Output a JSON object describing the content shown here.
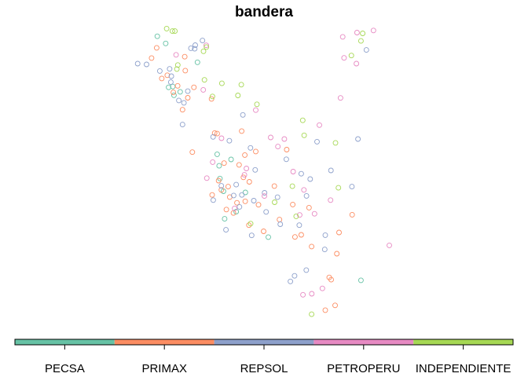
{
  "chart_data": {
    "type": "scatter",
    "title": "bandera",
    "categories": [
      "PECSA",
      "PRIMAX",
      "REPSOL",
      "PETROPERU",
      "INDEPENDIENTE"
    ],
    "colors": {
      "PECSA": "#66C2A5",
      "PRIMAX": "#FC8D62",
      "REPSOL": "#8DA0CB",
      "PETROPERU": "#E78AC3",
      "INDEPENDIENTE": "#A6D854"
    },
    "legend_position": "bottom",
    "grid": false,
    "axes": "none",
    "series": [
      {
        "category": "PECSA",
        "points": [
          [
            -79.83,
            -6.61
          ],
          [
            -80.41,
            -3.96
          ],
          [
            -77.03,
            -12.0
          ],
          [
            -76.64,
            -10.35
          ],
          [
            -76.97,
            -13.43
          ],
          [
            -77.25,
            -10.68
          ],
          [
            -75.91,
            -12.06
          ],
          [
            -79.56,
            -7.02
          ],
          [
            -79.24,
            -6.84
          ],
          [
            -76.38,
            -13.06
          ],
          [
            -78.36,
            -5.31
          ],
          [
            -79.98,
            -4.33
          ],
          [
            -77.35,
            -10.08
          ],
          [
            -77.21,
            -11.34
          ],
          [
            -79.62,
            -6.57
          ],
          [
            -74.74,
            -14.38
          ],
          [
            -70.01,
            -16.62
          ]
        ]
      },
      {
        "category": "PRIMAX",
        "points": [
          [
            -80.44,
            -4.56
          ],
          [
            -79.01,
            -5.02
          ],
          [
            -77.28,
            -11.45
          ],
          [
            -76.88,
            -12.95
          ],
          [
            -71.63,
            -16.47
          ],
          [
            -77.14,
            -11.93
          ],
          [
            -78.85,
            -7.15
          ],
          [
            -76.34,
            -12.6
          ],
          [
            -73.49,
            -12.69
          ],
          [
            -79.12,
            -7.77
          ],
          [
            -75.71,
            -11.51
          ],
          [
            -79.9,
            -5.98
          ],
          [
            -78.54,
            -6.61
          ],
          [
            -75.73,
            -13.76
          ],
          [
            -71.83,
            -18.17
          ],
          [
            -73.38,
            -14.37
          ],
          [
            -76.1,
            -8.88
          ],
          [
            -80.7,
            -5.09
          ],
          [
            -76.52,
            -13.13
          ],
          [
            -77.0,
            -10.54
          ],
          [
            -75.92,
            -12.52
          ],
          [
            -72.66,
            -12.85
          ],
          [
            -77.48,
            -8.98
          ],
          [
            -74.43,
            -11.73
          ],
          [
            -77.61,
            -12.19
          ],
          [
            -79.37,
            -6.53
          ],
          [
            -78.62,
            -9.97
          ],
          [
            -73.8,
            -9.84
          ],
          [
            -76.71,
            -12.3
          ],
          [
            -80.18,
            -6.15
          ],
          [
            -71.24,
            -15.24
          ],
          [
            -70.46,
            -13.22
          ],
          [
            -75.38,
            -9.94
          ],
          [
            -73.06,
            -14.26
          ],
          [
            -76.01,
            -11.28
          ],
          [
            -74.17,
            -13.47
          ],
          [
            -78.98,
            -5.74
          ],
          [
            -75.94,
            -10.12
          ],
          [
            -76.79,
            -11.76
          ],
          [
            -77.64,
            -7.21
          ],
          [
            -76.23,
            -10.63
          ],
          [
            -75.24,
            -12.7
          ],
          [
            -71.13,
            -14.14
          ],
          [
            -77.35,
            -9.01
          ],
          [
            -71.53,
            -16.59
          ],
          [
            -79.59,
            -6.87
          ],
          [
            -74.98,
            -14.08
          ],
          [
            -72.53,
            -14.87
          ],
          [
            -71.33,
            -17.92
          ]
        ]
      },
      {
        "category": "REPSOL",
        "points": [
          [
            -79.05,
            -7.41
          ],
          [
            -80.96,
            -5.42
          ],
          [
            -77.56,
            -9.18
          ],
          [
            -72.8,
            -16.09
          ],
          [
            -76.73,
            -9.38
          ],
          [
            -76.21,
            -12.81
          ],
          [
            -78.47,
            -4.42
          ],
          [
            -75.48,
            -12.49
          ],
          [
            -81.41,
            -5.38
          ],
          [
            -74.93,
            -12.08
          ],
          [
            -78.1,
            -4.18
          ],
          [
            -79.72,
            -6.34
          ],
          [
            -70.16,
            -9.29
          ],
          [
            -76.51,
            -12.22
          ],
          [
            -73.82,
            -10.34
          ],
          [
            -77.14,
            -11.72
          ],
          [
            -75.65,
            -9.75
          ],
          [
            -71.83,
            -14.28
          ],
          [
            -76.9,
            -14.0
          ],
          [
            -79.78,
            -5.65
          ],
          [
            -73.4,
            -16.39
          ],
          [
            -76.09,
            -12.19
          ],
          [
            -72.79,
            -12.24
          ],
          [
            -74.27,
            -12.31
          ],
          [
            -79.31,
            -7.29
          ],
          [
            -73.16,
            -13.76
          ],
          [
            -78.5,
            -4.61
          ],
          [
            -77.55,
            -12.46
          ],
          [
            -79.12,
            -8.54
          ],
          [
            -71.86,
            -15.02
          ],
          [
            -79.69,
            -6.03
          ],
          [
            -73.06,
            -11.09
          ],
          [
            -75.41,
            -10.89
          ],
          [
            -76.38,
            -11.66
          ],
          [
            -72.6,
            -11.37
          ],
          [
            -69.73,
            -4.67
          ],
          [
            -73.61,
            -16.68
          ],
          [
            -74.85,
            -13.07
          ],
          [
            -78.85,
            -6.81
          ],
          [
            -80.28,
            -5.76
          ],
          [
            -75.59,
            -14.29
          ],
          [
            -74.13,
            -13.71
          ],
          [
            -70.47,
            -11.76
          ],
          [
            -78.69,
            -4.58
          ],
          [
            -71.54,
            -10.92
          ],
          [
            -72.25,
            -9.43
          ],
          [
            -76.04,
            -8.04
          ]
        ]
      },
      {
        "category": "PETROPERU",
        "points": [
          [
            -77.58,
            -10.49
          ],
          [
            -70.21,
            -3.77
          ],
          [
            -72.52,
            -17.32
          ],
          [
            -75.96,
            -11.15
          ],
          [
            -74.25,
            -9.68
          ],
          [
            -70.24,
            -5.38
          ],
          [
            -71.56,
            -12.46
          ],
          [
            -75.38,
            -7.79
          ],
          [
            -77.88,
            -11.32
          ],
          [
            -77.13,
            -9.25
          ],
          [
            -71.98,
            -17.04
          ],
          [
            -70.94,
            -3.99
          ],
          [
            -78.06,
            -6.74
          ],
          [
            -74.94,
            -12.25
          ],
          [
            -73.47,
            -10.98
          ],
          [
            -72.92,
            -11.93
          ],
          [
            -75.86,
            -10.82
          ],
          [
            -71.05,
            -7.16
          ],
          [
            -79.45,
            -4.92
          ],
          [
            -74.62,
            -9.21
          ],
          [
            -72.38,
            -13.17
          ],
          [
            -77.91,
            -4.43
          ],
          [
            -69.37,
            -3.66
          ],
          [
            -76.46,
            -12.89
          ],
          [
            -73.92,
            -9.29
          ],
          [
            -72.97,
            -17.37
          ],
          [
            -72.13,
            -8.57
          ],
          [
            -68.56,
            -14.81
          ],
          [
            -70.87,
            -5.08
          ],
          [
            -73.14,
            -13.23
          ]
        ]
      },
      {
        "category": "INDEPENDIENTE",
        "points": [
          [
            -79.36,
            -5.45
          ],
          [
            -70.01,
            -4.2
          ],
          [
            -75.64,
            -13.68
          ],
          [
            -79.51,
            -3.69
          ],
          [
            -78.0,
            -6.22
          ],
          [
            -72.98,
            -8.32
          ],
          [
            -71.31,
            -9.49
          ],
          [
            -75.32,
            -7.49
          ],
          [
            -79.41,
            -5.66
          ],
          [
            -77.9,
            -4.52
          ],
          [
            -76.29,
            -7.03
          ],
          [
            -72.53,
            -18.38
          ],
          [
            -74.42,
            -12.57
          ],
          [
            -73.51,
            -11.74
          ],
          [
            -70.5,
            -4.96
          ],
          [
            -76.12,
            -6.47
          ],
          [
            -79.64,
            -3.69
          ],
          [
            -72.91,
            -9.1
          ],
          [
            -73.32,
            -13.3
          ],
          [
            -71.16,
            -11.82
          ],
          [
            -78.05,
            -4.74
          ],
          [
            -69.92,
            -3.81
          ],
          [
            -79.93,
            -3.56
          ],
          [
            -77.11,
            -6.4
          ],
          [
            -77.59,
            -7.08
          ]
        ]
      }
    ]
  }
}
